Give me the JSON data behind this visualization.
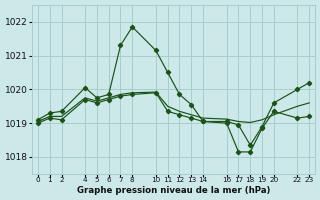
{
  "title": "Graphe pression niveau de la mer (hPa)",
  "bg_color": "#cce8e8",
  "grid_color": "#a8cccc",
  "line_color": "#1a5218",
  "ylim": [
    1017.5,
    1022.5
  ],
  "yticks": [
    1018,
    1019,
    1020,
    1021,
    1022
  ],
  "x_ticks": [
    0,
    1,
    2,
    4,
    5,
    6,
    7,
    8,
    10,
    11,
    12,
    13,
    14,
    16,
    17,
    18,
    19,
    20,
    22,
    23
  ],
  "line_max_x": [
    0,
    1,
    2,
    4,
    5,
    6,
    7,
    8,
    10,
    11,
    12,
    13,
    14,
    16,
    17,
    18,
    19,
    20,
    22,
    23
  ],
  "line_max_y": [
    1019.1,
    1019.3,
    1019.35,
    1020.05,
    1019.75,
    1019.85,
    1021.3,
    1021.85,
    1021.15,
    1020.5,
    1019.85,
    1019.55,
    1019.05,
    1019.05,
    1018.95,
    1018.35,
    1018.9,
    1019.6,
    1020.0,
    1020.2
  ],
  "line_mid_x": [
    0,
    1,
    2,
    4,
    5,
    6,
    7,
    8,
    10,
    11,
    12,
    13,
    14,
    16,
    17,
    18,
    19,
    20,
    22,
    23
  ],
  "line_mid_y": [
    1019.05,
    1019.2,
    1019.2,
    1019.75,
    1019.65,
    1019.75,
    1019.85,
    1019.9,
    1019.92,
    1019.5,
    1019.35,
    1019.25,
    1019.15,
    1019.12,
    1019.05,
    1019.02,
    1019.1,
    1019.25,
    1019.5,
    1019.6
  ],
  "line_min_x": [
    0,
    1,
    2,
    4,
    5,
    6,
    7,
    8,
    10,
    11,
    12,
    13,
    14,
    16,
    17,
    18,
    19,
    20,
    22,
    23
  ],
  "line_min_y": [
    1019.0,
    1019.15,
    1019.1,
    1019.7,
    1019.6,
    1019.7,
    1019.8,
    1019.85,
    1019.9,
    1019.35,
    1019.25,
    1019.15,
    1019.05,
    1019.0,
    1018.15,
    1018.15,
    1018.85,
    1019.35,
    1019.15,
    1019.2
  ]
}
